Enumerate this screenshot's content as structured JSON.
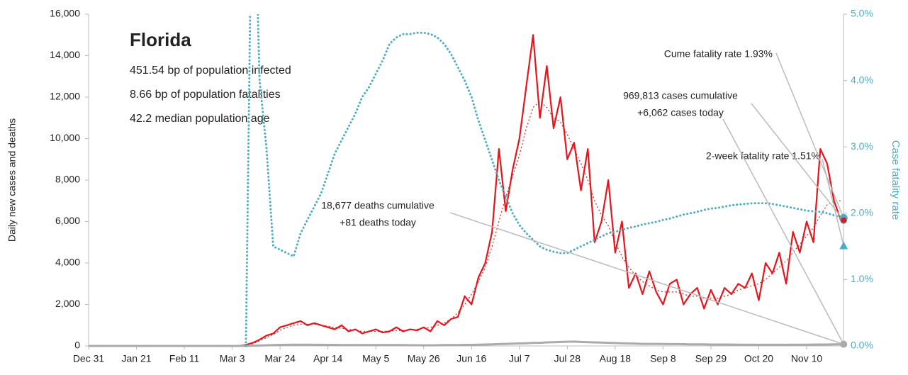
{
  "chart_data": {
    "type": "line",
    "categories": [
      "Dec 31",
      null,
      null,
      null,
      null,
      null,
      null,
      "Jan 21",
      null,
      null,
      null,
      null,
      null,
      null,
      "Feb 11",
      null,
      null,
      null,
      null,
      null,
      null,
      "Mar 3",
      null,
      null,
      null,
      null,
      null,
      null,
      "Mar 24",
      null,
      null,
      null,
      null,
      null,
      null,
      "Apr 14",
      null,
      null,
      null,
      null,
      null,
      null,
      "May 5",
      null,
      null,
      null,
      null,
      null,
      null,
      "May 26",
      null,
      null,
      null,
      null,
      null,
      null,
      "Jun 16",
      null,
      null,
      null,
      null,
      null,
      null,
      "Jul 7",
      null,
      null,
      null,
      null,
      null,
      null,
      "Jul 28",
      null,
      null,
      null,
      null,
      null,
      null,
      "Aug 18",
      null,
      null,
      null,
      null,
      null,
      null,
      "Sep 8",
      null,
      null,
      null,
      null,
      null,
      null,
      "Sep 29",
      null,
      null,
      null,
      null,
      null,
      null,
      "Oct 20",
      null,
      null,
      null,
      null,
      null,
      null,
      "Nov 10",
      null,
      null,
      null,
      null,
      null
    ],
    "series": [
      {
        "color": "#e8141b",
        "style": "solid",
        "values": [
          0,
          0,
          0,
          0,
          0,
          0,
          0,
          0,
          0,
          0,
          0,
          0,
          0,
          0,
          0,
          0,
          0,
          0,
          0,
          0,
          0,
          0,
          0,
          50,
          150,
          300,
          500,
          600,
          900,
          1000,
          1100,
          1200,
          1000,
          1100,
          1000,
          900,
          800,
          1000,
          700,
          800,
          600,
          700,
          800,
          650,
          700,
          900,
          700,
          800,
          750,
          900,
          700,
          1200,
          1000,
          1300,
          1400,
          2400,
          2000,
          3300,
          4000,
          5500,
          9500,
          6500,
          8500,
          10000,
          12500,
          15000,
          11000,
          13500,
          10500,
          12000,
          9000,
          9800,
          7500,
          9500,
          5000,
          6000,
          8000,
          4500,
          6000,
          2800,
          3500,
          2500,
          3600,
          2600,
          2000,
          3000,
          3200,
          2000,
          2500,
          2800,
          1800,
          2700,
          2000,
          2800,
          2500,
          3000,
          2800,
          3500,
          2200,
          4000,
          3500,
          4500,
          3000,
          5500,
          4500,
          6000,
          5000,
          9500,
          8800,
          7000,
          6062
        ]
      },
      {
        "color": "#e8141b",
        "style": "dotted",
        "values": [
          0,
          0,
          0,
          0,
          0,
          0,
          0,
          0,
          0,
          0,
          0,
          0,
          0,
          0,
          0,
          0,
          0,
          0,
          0,
          0,
          0,
          0,
          0,
          30,
          100,
          250,
          400,
          550,
          750,
          900,
          1000,
          1050,
          1050,
          1050,
          1000,
          950,
          900,
          850,
          800,
          750,
          700,
          700,
          700,
          700,
          720,
          750,
          750,
          780,
          800,
          850,
          900,
          1000,
          1100,
          1300,
          1600,
          2000,
          2500,
          3100,
          3800,
          4800,
          6000,
          7200,
          8200,
          9200,
          10500,
          11500,
          11800,
          11500,
          11000,
          10800,
          10200,
          9500,
          8800,
          8000,
          7000,
          6300,
          5800,
          5000,
          4300,
          3800,
          3400,
          3100,
          2900,
          2700,
          2600,
          2600,
          2600,
          2500,
          2400,
          2400,
          2300,
          2300,
          2300,
          2400,
          2500,
          2700,
          2800,
          2900,
          3000,
          3200,
          3500,
          3800,
          4100,
          4500,
          4900,
          5300,
          5700,
          6300,
          6800,
          7000,
          7000
        ]
      },
      {
        "color": "#aaaaaa",
        "style": "solid",
        "values": [
          0,
          0,
          0,
          0,
          0,
          0,
          0,
          0,
          0,
          0,
          0,
          0,
          0,
          0,
          0,
          0,
          0,
          0,
          0,
          0,
          0,
          0,
          0,
          5,
          10,
          20,
          30,
          40,
          50,
          55,
          60,
          60,
          60,
          55,
          55,
          50,
          50,
          45,
          45,
          40,
          40,
          45,
          40,
          40,
          45,
          40,
          40,
          35,
          35,
          30,
          30,
          35,
          40,
          40,
          45,
          50,
          50,
          60,
          70,
          80,
          90,
          100,
          110,
          120,
          130,
          150,
          150,
          170,
          180,
          190,
          200,
          210,
          190,
          180,
          170,
          160,
          150,
          140,
          130,
          120,
          110,
          100,
          100,
          100,
          95,
          90,
          90,
          85,
          80,
          80,
          75,
          70,
          70,
          70,
          65,
          60,
          60,
          60,
          55,
          55,
          55,
          55,
          55,
          60,
          60,
          60,
          65,
          70,
          70,
          75,
          81
        ]
      },
      {
        "color": "#4bacc6",
        "style": "dotted",
        "axis": "y2",
        "values": [
          null,
          null,
          null,
          null,
          null,
          null,
          null,
          null,
          null,
          null,
          null,
          null,
          null,
          null,
          null,
          null,
          null,
          null,
          null,
          null,
          null,
          null,
          null,
          0,
          8,
          4.0,
          3.0,
          1.5,
          1.45,
          1.4,
          1.35,
          1.7,
          1.9,
          2.1,
          2.3,
          2.6,
          2.9,
          3.1,
          3.3,
          3.5,
          3.75,
          3.9,
          4.1,
          4.3,
          4.55,
          4.65,
          4.7,
          4.7,
          4.72,
          4.72,
          4.7,
          4.65,
          4.55,
          4.4,
          4.2,
          4.0,
          3.75,
          3.4,
          3.1,
          2.8,
          2.5,
          2.25,
          2.0,
          1.82,
          1.7,
          1.6,
          1.5,
          1.45,
          1.42,
          1.4,
          1.4,
          1.45,
          1.5,
          1.55,
          1.6,
          1.65,
          1.7,
          1.72,
          1.75,
          1.78,
          1.8,
          1.83,
          1.85,
          1.87,
          1.9,
          1.92,
          1.95,
          1.98,
          2.0,
          2.02,
          2.05,
          2.07,
          2.08,
          2.1,
          2.12,
          2.13,
          2.14,
          2.15,
          2.15,
          2.15,
          2.14,
          2.12,
          2.1,
          2.08,
          2.06,
          2.04,
          2.03,
          2.02,
          2.0,
          1.97,
          1.93
        ]
      }
    ],
    "ylabel": "Daily new cases and deaths",
    "y2label": "Case fatality rate",
    "ylim": [
      0,
      16000
    ],
    "yticks": [
      0,
      {
        "value": 2000,
        "label": "2,000"
      },
      {
        "value": 4000,
        "label": "4,000"
      },
      {
        "value": 6000,
        "label": "6,000"
      },
      {
        "value": 8000,
        "label": "8,000"
      },
      {
        "value": 10000,
        "label": "10,000"
      },
      {
        "value": 12000,
        "label": "12,000"
      },
      {
        "value": 14000,
        "label": "14,000"
      },
      {
        "value": 16000,
        "label": "16,000"
      }
    ],
    "y2lim": [
      0,
      5
    ],
    "y2ticks": [
      {
        "value": 0,
        "label": "0.0%"
      },
      {
        "value": 1,
        "label": "1.0%"
      },
      {
        "value": 2,
        "label": "2.0%"
      },
      {
        "value": 3,
        "label": "3.0%"
      },
      {
        "value": 4,
        "label": "4.0%"
      },
      {
        "value": 5,
        "label": "5.0%"
      }
    ],
    "grid": false,
    "info": {
      "title": "Florida",
      "lines": [
        "451.54 bp of population infected",
        "8.66 bp of population fatalities",
        "42.2 median population age"
      ]
    },
    "markers": {
      "cases_today": 6062,
      "deaths_today": 81,
      "cume_fatality": 1.93,
      "two_week_fatality": 1.51
    },
    "annotations": {
      "cume": "Cume fatality rate 1.93%",
      "cases1": "969,813 cases cumulative",
      "cases2": "+6,062 cases today",
      "twoweek": "2-week fatality rate 1.51%",
      "deaths1": "18,677 deaths cumulative",
      "deaths2": "+81 deaths today"
    }
  }
}
